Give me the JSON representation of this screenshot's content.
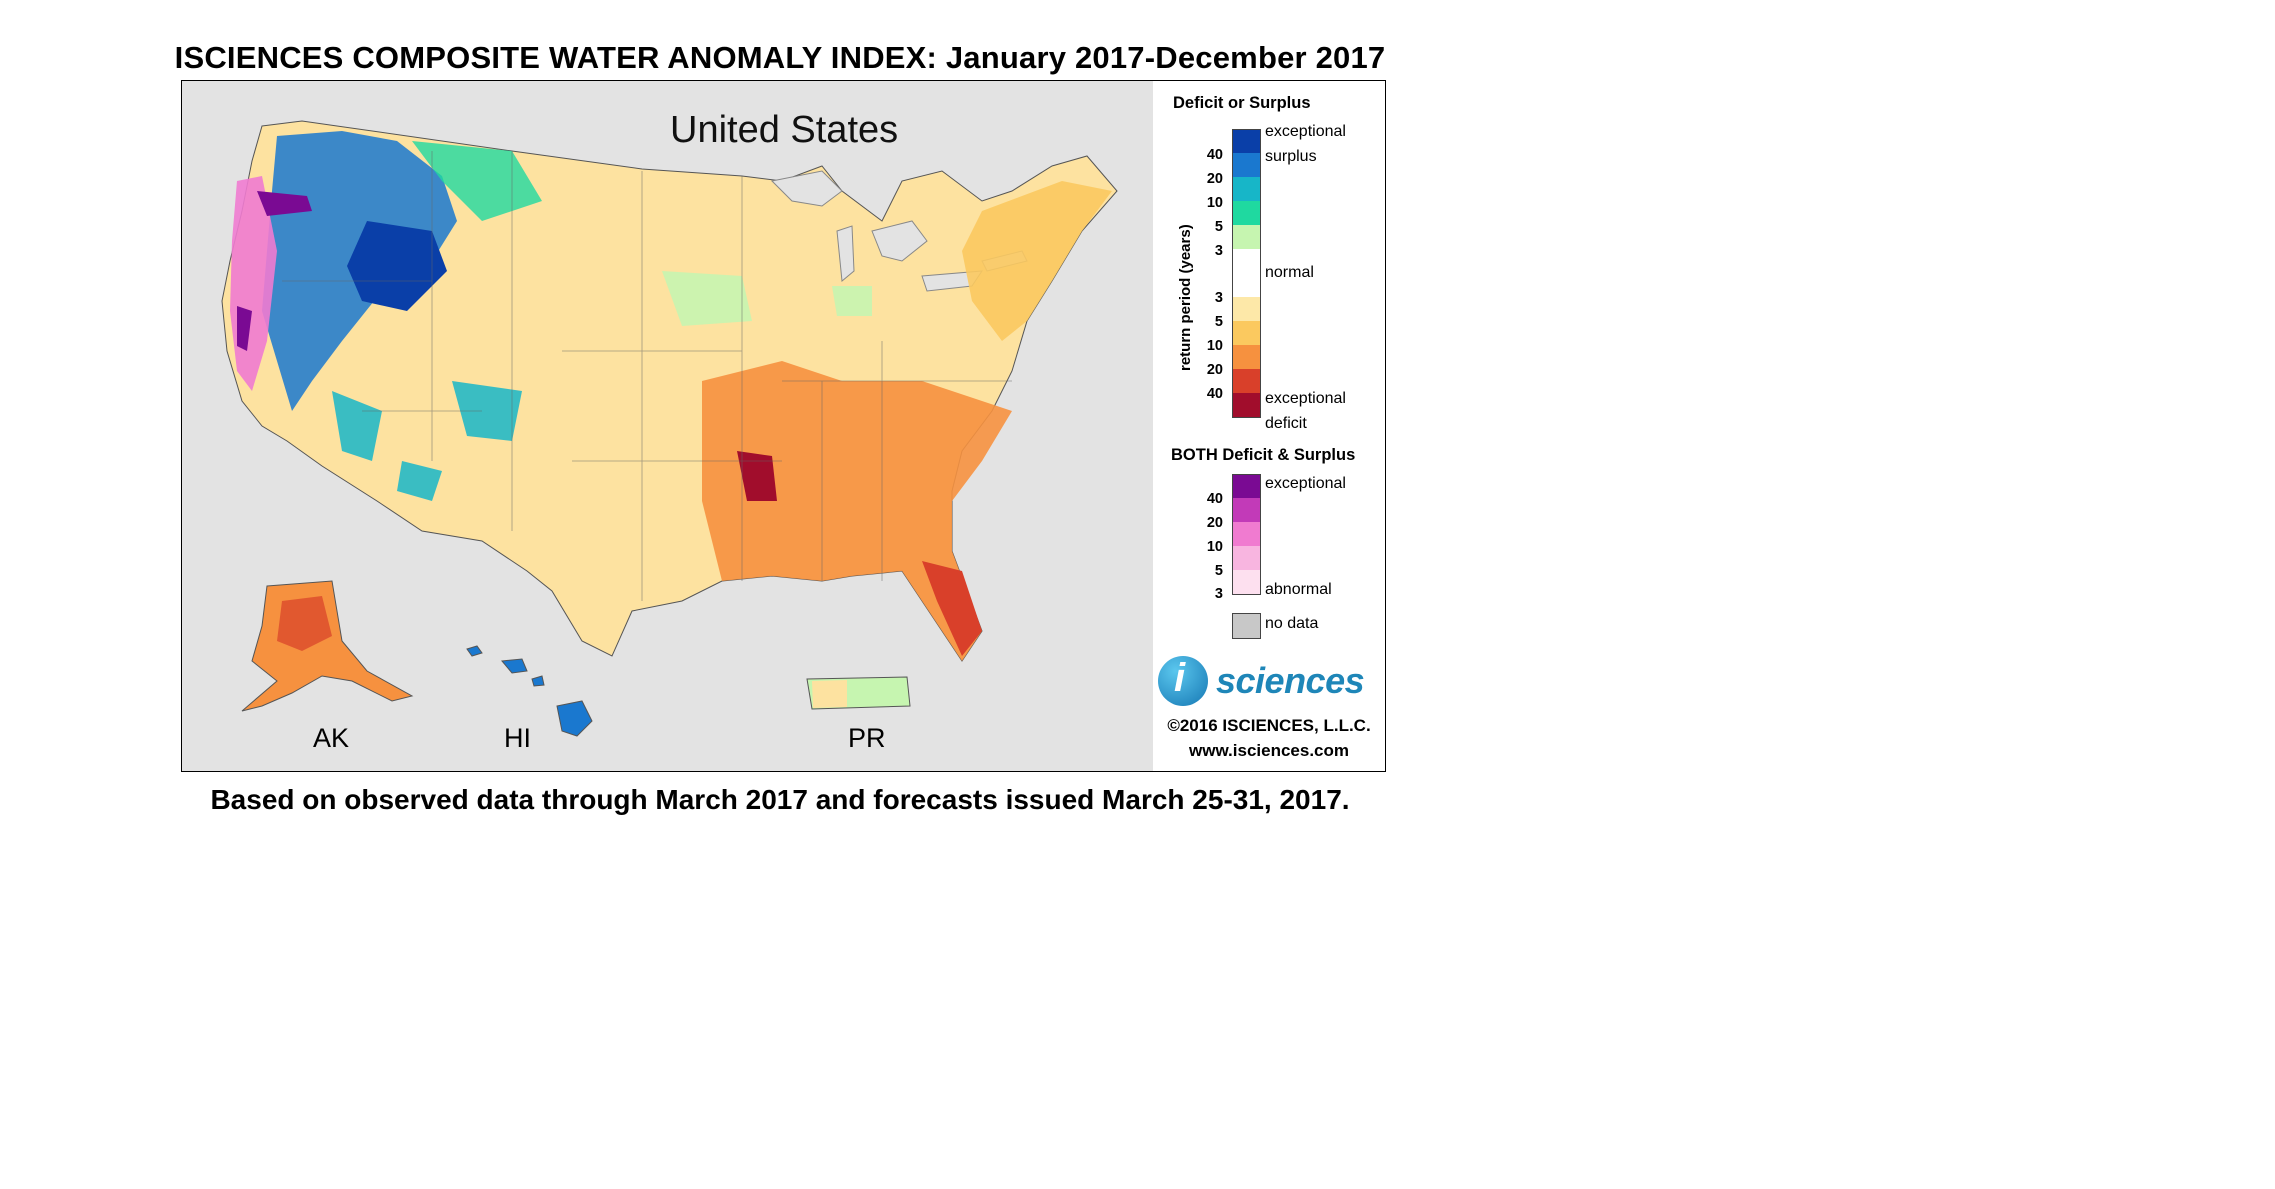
{
  "title": "ISCIENCES COMPOSITE WATER ANOMALY INDEX: January 2017-December 2017",
  "map": {
    "region_title": "United States",
    "insets": [
      "AK",
      "HI",
      "PR"
    ]
  },
  "legend": {
    "deficit_surplus_heading": "Deficit or Surplus",
    "axis_label": "return period (years)",
    "surplus_ticks": [
      "40",
      "20",
      "10",
      "5",
      "3"
    ],
    "deficit_ticks": [
      "3",
      "5",
      "10",
      "20",
      "40"
    ],
    "label_exceptional_surplus": "exceptional surplus",
    "label_normal": "normal",
    "label_exceptional_deficit": "exceptional deficit",
    "both_heading": "BOTH Deficit & Surplus",
    "both_ticks": [
      "40",
      "20",
      "10",
      "5",
      "3"
    ],
    "label_both_exceptional": "exceptional",
    "label_both_abnormal": "abnormal",
    "label_no_data": "no data",
    "colors": {
      "surplus": [
        "#0a3fa8",
        "#1a78cf",
        "#17b6c8",
        "#1fd9a0",
        "#c6f5b0"
      ],
      "normal": "#ffffff",
      "deficit": [
        "#fde8a8",
        "#fbc95f",
        "#f6913f",
        "#d9402a",
        "#a10d2c"
      ],
      "both": [
        "#7a0a93",
        "#c23ab8",
        "#f07bd0",
        "#f8b5e0",
        "#fde0ef"
      ],
      "no_data": "#c8c8c8"
    }
  },
  "branding": {
    "logo_text": "sciences",
    "logo_i": "i",
    "copyright": "©2016 ISCIENCES, L.L.C.",
    "website": "www.isciences.com"
  },
  "footer": "Based on observed data through March 2017 and forecasts issued March 25-31, 2017."
}
